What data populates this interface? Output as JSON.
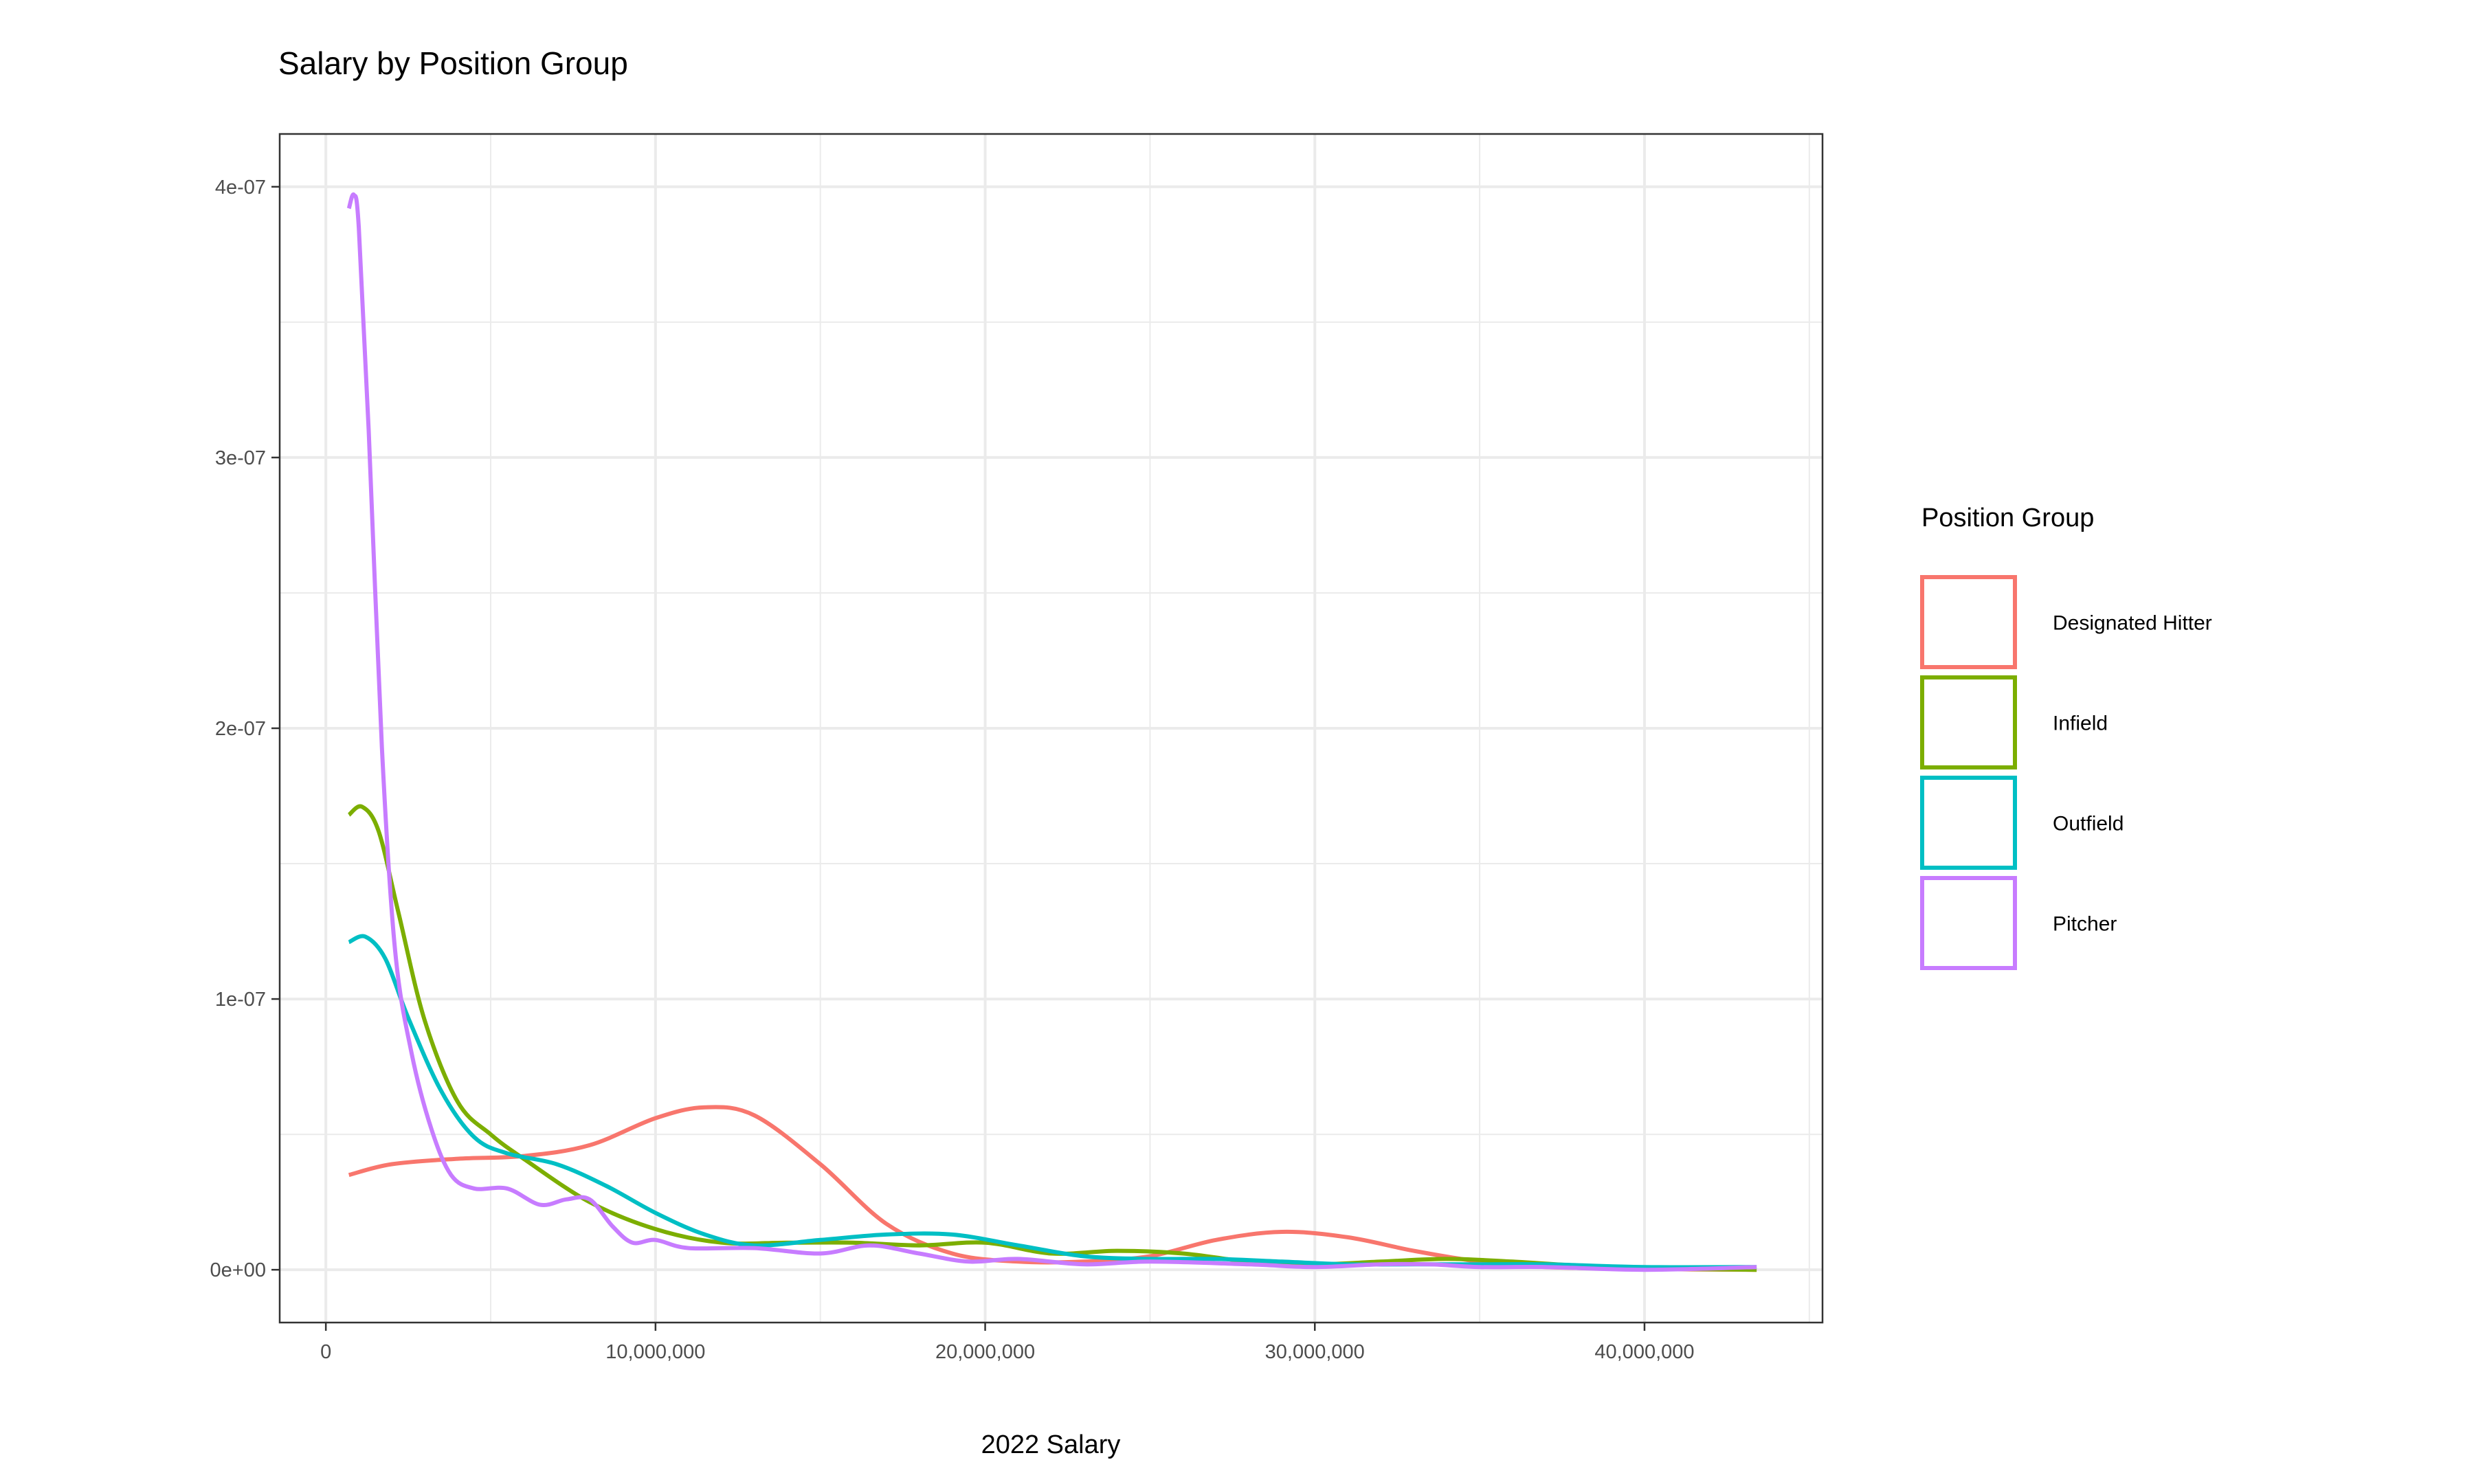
{
  "chart_data": {
    "type": "line",
    "title": "Salary by Position Group",
    "xlabel": "2022 Salary",
    "ylabel": "",
    "xlim": [
      -1400000,
      45400000
    ],
    "ylim": [
      -1.95e-08,
      4.195e-07
    ],
    "x_ticks": [
      0,
      10000000,
      20000000,
      30000000,
      40000000
    ],
    "x_tick_labels": [
      "0",
      "10,000,000",
      "20,000,000",
      "30,000,000",
      "40,000,000"
    ],
    "y_ticks": [
      0,
      1e-07,
      2e-07,
      3e-07,
      4e-07
    ],
    "y_tick_labels": [
      "0e+00",
      "1e-07",
      "2e-07",
      "3e-07",
      "4e-07"
    ],
    "grid": true,
    "legend": {
      "title": "Position Group",
      "position": "right"
    },
    "series": [
      {
        "name": "Designated Hitter",
        "color": "#F8766D",
        "x": [
          700000,
          2000000,
          4000000,
          6000000,
          8000000,
          10000000,
          11500000,
          13000000,
          15000000,
          17000000,
          19000000,
          21000000,
          23000000,
          25000000,
          27000000,
          29000000,
          31000000,
          33000000,
          35000000,
          37000000,
          40000000,
          43400000
        ],
        "y": [
          3.5e-08,
          3.9e-08,
          4.1e-08,
          4.2e-08,
          4.6e-08,
          5.6e-08,
          6e-08,
          5.7e-08,
          3.9e-08,
          1.7e-08,
          6e-09,
          3e-09,
          3e-09,
          5e-09,
          1.1e-08,
          1.4e-08,
          1.2e-08,
          7e-09,
          3e-09,
          1e-09,
          3e-10,
          0.0
        ]
      },
      {
        "name": "Infield",
        "color": "#7CAE00",
        "x": [
          700000,
          1100000,
          1600000,
          2200000,
          3000000,
          4000000,
          5000000,
          6000000,
          8000000,
          10000000,
          12000000,
          14000000,
          16000000,
          18000000,
          20000000,
          22000000,
          24000000,
          26000000,
          28000000,
          30000000,
          32000000,
          34000000,
          36000000,
          38000000,
          40000000,
          43400000
        ],
        "y": [
          1.68e-07,
          1.71e-07,
          1.62e-07,
          1.32e-07,
          9.2e-08,
          6.2e-08,
          5e-08,
          4.1e-08,
          2.5e-08,
          1.5e-08,
          1e-08,
          1e-08,
          1e-08,
          9e-09,
          1e-08,
          6e-09,
          7e-09,
          6e-09,
          3e-09,
          2e-09,
          3e-09,
          4e-09,
          3e-09,
          1.5e-09,
          5e-10,
          0.0
        ]
      },
      {
        "name": "Outfield",
        "color": "#00BFC4",
        "x": [
          700000,
          1200000,
          1800000,
          2500000,
          3500000,
          4500000,
          5500000,
          7000000,
          8500000,
          10000000,
          11500000,
          13000000,
          15000000,
          17000000,
          19000000,
          21000000,
          23000000,
          25000000,
          27000000,
          29000000,
          31000000,
          33000000,
          35000000,
          37000000,
          40000000,
          43400000
        ],
        "y": [
          1.21e-07,
          1.23e-07,
          1.15e-07,
          9.3e-08,
          6.6e-08,
          4.9e-08,
          4.3e-08,
          3.9e-08,
          3.1e-08,
          2.1e-08,
          1.3e-08,
          9e-09,
          1.1e-08,
          1.3e-08,
          1.3e-08,
          9e-09,
          5e-09,
          4e-09,
          4e-09,
          3e-09,
          2e-09,
          2e-09,
          2e-09,
          2e-09,
          1e-09,
          1e-09
        ]
      },
      {
        "name": "Pitcher",
        "color": "#C77CFF",
        "x": [
          700000,
          850000,
          1000000,
          1300000,
          1700000,
          2100000,
          2600000,
          3200000,
          3800000,
          4500000,
          5500000,
          6500000,
          7300000,
          8000000,
          8700000,
          9300000,
          10000000,
          11000000,
          13000000,
          15000000,
          16500000,
          18000000,
          19500000,
          21000000,
          23000000,
          25000000,
          28000000,
          30000000,
          32000000,
          33500000,
          35000000,
          37000000,
          40000000,
          43400000
        ],
        "y": [
          3.92e-07,
          3.97e-07,
          3.85e-07,
          3.1e-07,
          1.93e-07,
          1.18e-07,
          8e-08,
          5.2e-08,
          3.5e-08,
          3e-08,
          3e-08,
          2.4e-08,
          2.6e-08,
          2.6e-08,
          1.6e-08,
          1e-08,
          1.1e-08,
          8e-09,
          8e-09,
          6e-09,
          9e-09,
          6e-09,
          3e-09,
          4e-09,
          2e-09,
          3e-09,
          2e-09,
          1e-09,
          2e-09,
          2e-09,
          1e-09,
          1e-09,
          0.0,
          1e-09
        ]
      }
    ]
  }
}
